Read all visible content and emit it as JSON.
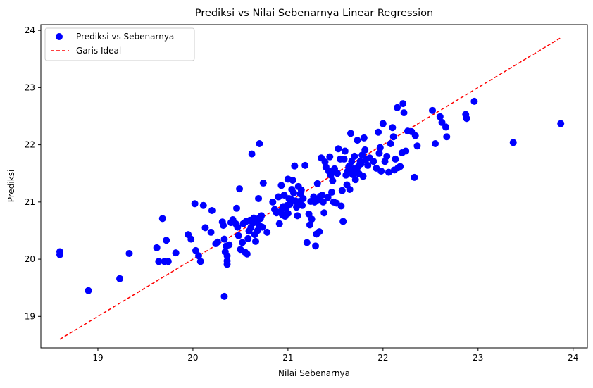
{
  "chart_data": {
    "type": "scatter",
    "title": "Prediksi vs Nilai Sebenarnya Linear Regression",
    "xlabel": "Nilai Sebenarnya",
    "ylabel": "Prediksi",
    "xlim": [
      18.4,
      24.15
    ],
    "ylim": [
      18.45,
      24.1
    ],
    "xticks": [
      19,
      20,
      21,
      22,
      23,
      24
    ],
    "yticks": [
      19,
      20,
      21,
      22,
      23,
      24
    ],
    "xtick_labels": [
      "19",
      "20",
      "21",
      "22",
      "23",
      "24"
    ],
    "ytick_labels": [
      "19",
      "20",
      "21",
      "22",
      "23",
      "24"
    ],
    "grid": false,
    "legend_position": "top-left",
    "colors": {
      "points": "#0000ff",
      "ideal_line": "#ff0000"
    },
    "series": [
      {
        "name": "Prediksi vs Sebenarnya",
        "kind": "scatter",
        "points": [
          [
            18.6,
            20.13
          ],
          [
            18.6,
            20.08
          ],
          [
            18.9,
            19.45
          ],
          [
            19.23,
            19.66
          ],
          [
            19.33,
            20.1
          ],
          [
            19.62,
            20.2
          ],
          [
            19.64,
            19.96
          ],
          [
            19.68,
            20.71
          ],
          [
            19.7,
            19.96
          ],
          [
            19.72,
            20.33
          ],
          [
            19.74,
            19.96
          ],
          [
            19.82,
            20.11
          ],
          [
            19.95,
            20.43
          ],
          [
            19.98,
            20.35
          ],
          [
            20.02,
            20.97
          ],
          [
            20.03,
            20.15
          ],
          [
            20.06,
            20.06
          ],
          [
            20.08,
            19.96
          ],
          [
            20.11,
            20.94
          ],
          [
            20.13,
            20.55
          ],
          [
            20.19,
            20.47
          ],
          [
            20.2,
            20.85
          ],
          [
            20.24,
            20.27
          ],
          [
            20.26,
            20.3
          ],
          [
            20.31,
            20.65
          ],
          [
            20.32,
            20.59
          ],
          [
            20.33,
            20.35
          ],
          [
            20.33,
            19.35
          ],
          [
            20.34,
            20.13
          ],
          [
            20.35,
            20.23
          ],
          [
            20.36,
            19.97
          ],
          [
            20.36,
            20.06
          ],
          [
            20.36,
            19.91
          ],
          [
            20.38,
            20.25
          ],
          [
            20.4,
            20.64
          ],
          [
            20.42,
            20.69
          ],
          [
            20.45,
            20.62
          ],
          [
            20.46,
            20.89
          ],
          [
            20.47,
            20.56
          ],
          [
            20.48,
            20.41
          ],
          [
            20.49,
            21.23
          ],
          [
            20.5,
            20.17
          ],
          [
            20.52,
            20.29
          ],
          [
            20.53,
            20.62
          ],
          [
            20.55,
            20.12
          ],
          [
            20.56,
            20.66
          ],
          [
            20.57,
            20.09
          ],
          [
            20.58,
            20.36
          ],
          [
            20.59,
            20.49
          ],
          [
            20.6,
            20.68
          ],
          [
            20.61,
            20.55
          ],
          [
            20.62,
            21.84
          ],
          [
            20.63,
            20.63
          ],
          [
            20.64,
            20.72
          ],
          [
            20.65,
            20.43
          ],
          [
            20.66,
            20.31
          ],
          [
            20.67,
            20.64
          ],
          [
            20.68,
            20.5
          ],
          [
            20.69,
            20.71
          ],
          [
            20.69,
            21.06
          ],
          [
            20.7,
            20.59
          ],
          [
            20.7,
            22.02
          ],
          [
            20.71,
            20.71
          ],
          [
            20.72,
            20.76
          ],
          [
            20.73,
            20.56
          ],
          [
            20.74,
            21.33
          ],
          [
            20.78,
            20.47
          ],
          [
            20.84,
            21.0
          ],
          [
            20.86,
            20.87
          ],
          [
            20.88,
            20.81
          ],
          [
            20.9,
            21.09
          ],
          [
            20.91,
            20.62
          ],
          [
            20.92,
            20.83
          ],
          [
            20.93,
            21.29
          ],
          [
            20.94,
            20.78
          ],
          [
            20.95,
            20.92
          ],
          [
            20.96,
            21.12
          ],
          [
            20.97,
            20.75
          ],
          [
            20.98,
            20.88
          ],
          [
            20.99,
            20.94
          ],
          [
            21.0,
            21.4
          ],
          [
            21.0,
            20.8
          ],
          [
            21.01,
            21.06
          ],
          [
            21.02,
            20.96
          ],
          [
            21.03,
            21.05
          ],
          [
            21.04,
            21.22
          ],
          [
            21.05,
            21.38
          ],
          [
            21.06,
            21.16
          ],
          [
            21.07,
            21.63
          ],
          [
            21.08,
            21.02
          ],
          [
            21.09,
            20.91
          ],
          [
            21.1,
            20.76
          ],
          [
            21.11,
            21.27
          ],
          [
            21.12,
            21.01
          ],
          [
            21.13,
            21.14
          ],
          [
            21.14,
            21.21
          ],
          [
            21.15,
            20.94
          ],
          [
            21.16,
            21.06
          ],
          [
            21.18,
            21.64
          ],
          [
            21.2,
            20.29
          ],
          [
            21.22,
            20.79
          ],
          [
            21.23,
            20.6
          ],
          [
            21.24,
            21.01
          ],
          [
            21.25,
            20.7
          ],
          [
            21.27,
            21.09
          ],
          [
            21.28,
            21.0
          ],
          [
            21.29,
            20.23
          ],
          [
            21.3,
            20.44
          ],
          [
            21.31,
            21.32
          ],
          [
            21.32,
            21.04
          ],
          [
            21.33,
            20.48
          ],
          [
            21.34,
            21.1
          ],
          [
            21.35,
            21.77
          ],
          [
            21.36,
            21.12
          ],
          [
            21.37,
            21.0
          ],
          [
            21.38,
            20.81
          ],
          [
            21.39,
            21.7
          ],
          [
            21.4,
            21.61
          ],
          [
            21.42,
            21.08
          ],
          [
            21.43,
            21.54
          ],
          [
            21.44,
            21.79
          ],
          [
            21.45,
            21.47
          ],
          [
            21.46,
            21.17
          ],
          [
            21.47,
            21.37
          ],
          [
            21.48,
            21.0
          ],
          [
            21.49,
            21.58
          ],
          [
            21.5,
            21.52
          ],
          [
            21.51,
            20.98
          ],
          [
            21.52,
            21.5
          ],
          [
            21.53,
            21.93
          ],
          [
            21.55,
            21.75
          ],
          [
            21.56,
            20.93
          ],
          [
            21.57,
            21.2
          ],
          [
            21.58,
            20.66
          ],
          [
            21.59,
            21.75
          ],
          [
            21.6,
            21.89
          ],
          [
            21.61,
            21.47
          ],
          [
            21.62,
            21.3
          ],
          [
            21.63,
            21.54
          ],
          [
            21.64,
            21.62
          ],
          [
            21.65,
            21.22
          ],
          [
            21.66,
            22.2
          ],
          [
            21.67,
            21.71
          ],
          [
            21.68,
            21.48
          ],
          [
            21.69,
            21.58
          ],
          [
            21.7,
            21.8
          ],
          [
            21.71,
            21.39
          ],
          [
            21.72,
            21.55
          ],
          [
            21.73,
            22.08
          ],
          [
            21.74,
            21.62
          ],
          [
            21.75,
            21.49
          ],
          [
            21.76,
            21.71
          ],
          [
            21.77,
            21.67
          ],
          [
            21.78,
            21.82
          ],
          [
            21.79,
            21.45
          ],
          [
            21.8,
            22.12
          ],
          [
            21.81,
            21.91
          ],
          [
            21.82,
            21.74
          ],
          [
            21.84,
            21.64
          ],
          [
            21.86,
            21.77
          ],
          [
            21.9,
            21.71
          ],
          [
            21.93,
            21.59
          ],
          [
            21.95,
            22.22
          ],
          [
            21.96,
            21.85
          ],
          [
            21.97,
            21.95
          ],
          [
            21.98,
            21.54
          ],
          [
            22.0,
            22.37
          ],
          [
            22.02,
            21.71
          ],
          [
            22.04,
            21.8
          ],
          [
            22.06,
            21.52
          ],
          [
            22.08,
            22.02
          ],
          [
            22.1,
            22.3
          ],
          [
            22.11,
            22.14
          ],
          [
            22.12,
            21.56
          ],
          [
            22.13,
            21.75
          ],
          [
            22.15,
            22.65
          ],
          [
            22.16,
            21.6
          ],
          [
            22.18,
            21.62
          ],
          [
            22.2,
            21.86
          ],
          [
            22.21,
            22.72
          ],
          [
            22.22,
            22.56
          ],
          [
            22.24,
            21.89
          ],
          [
            22.26,
            22.24
          ],
          [
            22.3,
            22.23
          ],
          [
            22.33,
            21.43
          ],
          [
            22.34,
            22.16
          ],
          [
            22.36,
            21.98
          ],
          [
            22.52,
            22.6
          ],
          [
            22.55,
            22.02
          ],
          [
            22.6,
            22.49
          ],
          [
            22.62,
            22.39
          ],
          [
            22.66,
            22.31
          ],
          [
            22.67,
            22.14
          ],
          [
            22.87,
            22.53
          ],
          [
            22.88,
            22.46
          ],
          [
            22.96,
            22.76
          ],
          [
            23.37,
            22.04
          ],
          [
            23.87,
            22.37
          ]
        ]
      },
      {
        "name": "Garis Ideal",
        "kind": "line",
        "style": "dashed",
        "x": [
          18.6,
          23.87
        ],
        "y": [
          18.6,
          23.87
        ]
      }
    ]
  }
}
